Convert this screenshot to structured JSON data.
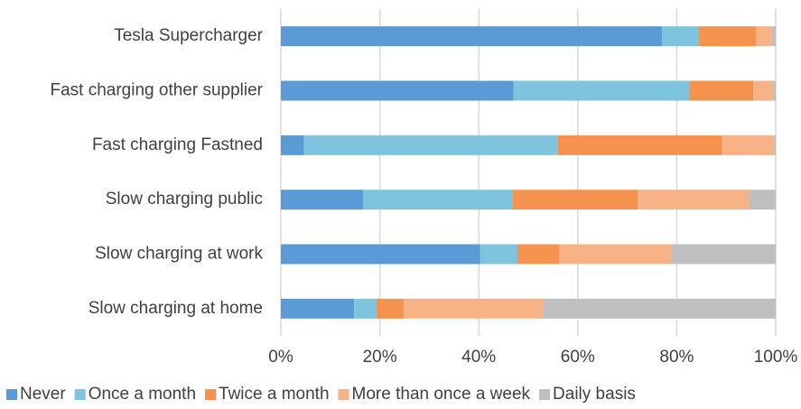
{
  "chart_data": {
    "type": "stacked-bar-horizontal",
    "categories": [
      "Tesla Supercharger",
      "Fast charging other supplier",
      "Fast charging Fastned",
      "Slow charging public",
      "Slow charging at work",
      "Slow charging at home"
    ],
    "series": [
      {
        "name": "Never",
        "color": "#5b9bd5",
        "values": [
          77,
          47,
          4.7,
          16.6,
          40.3,
          14.8
        ]
      },
      {
        "name": "Once a month",
        "color": "#7fc4de",
        "values": [
          7.5,
          35.5,
          51.3,
          30.3,
          7.5,
          4.5
        ]
      },
      {
        "name": "Twice a month",
        "color": "#f4924e",
        "values": [
          11.5,
          13,
          33.2,
          25.2,
          8.4,
          5.5
        ]
      },
      {
        "name": "More than once a week",
        "color": "#f7b386",
        "values": [
          3.2,
          4,
          10.4,
          22.6,
          22.8,
          28.3
        ]
      },
      {
        "name": "Daily basis",
        "color": "#bfbfbf",
        "values": [
          0.8,
          0.5,
          0.4,
          5.3,
          21,
          46.9
        ]
      }
    ],
    "xlim": [
      0,
      100
    ],
    "xticks": [
      {
        "value": 0,
        "label": "0%"
      },
      {
        "value": 20,
        "label": "20%"
      },
      {
        "value": 40,
        "label": "40%"
      },
      {
        "value": 60,
        "label": "60%"
      },
      {
        "value": 80,
        "label": "80%"
      },
      {
        "value": 100,
        "label": "100%"
      }
    ],
    "grid": true,
    "legend": "bottom"
  }
}
